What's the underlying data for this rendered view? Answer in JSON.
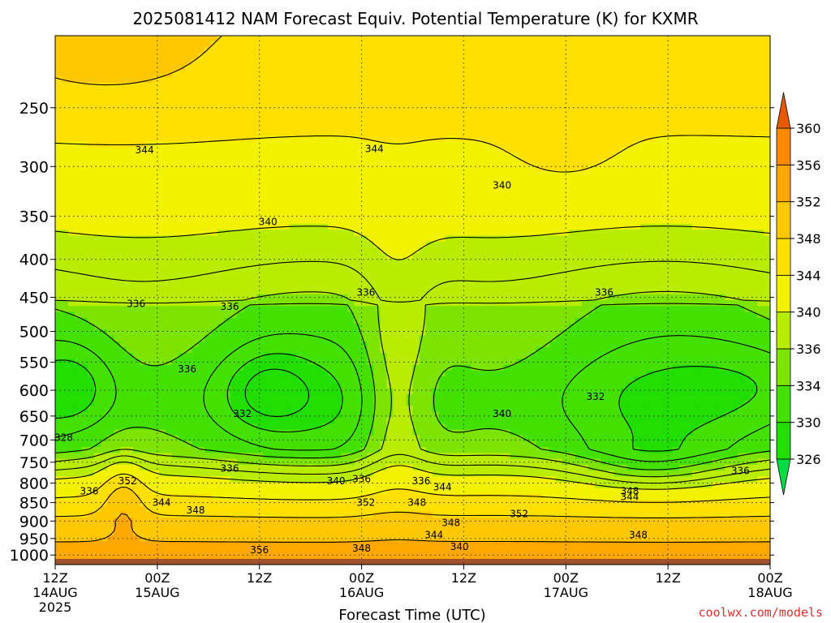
{
  "chart_data": {
    "type": "heatmap",
    "title": "2025081412 NAM Forecast Equiv. Potential Temperature (K) for KXMR",
    "xlabel": "Forecast Time (UTC)",
    "ylabel": "",
    "x_ticks": [
      {
        "label": "12Z",
        "sub": "14AUG",
        "sub2": "2025",
        "hours": 0
      },
      {
        "label": "00Z",
        "sub": "15AUG",
        "sub2": "",
        "hours": 12
      },
      {
        "label": "12Z",
        "sub": "",
        "sub2": "",
        "hours": 24
      },
      {
        "label": "00Z",
        "sub": "16AUG",
        "sub2": "",
        "hours": 36
      },
      {
        "label": "12Z",
        "sub": "",
        "sub2": "",
        "hours": 48
      },
      {
        "label": "00Z",
        "sub": "17AUG",
        "sub2": "",
        "hours": 60
      },
      {
        "label": "12Z",
        "sub": "",
        "sub2": "",
        "hours": 72
      },
      {
        "label": "00Z",
        "sub": "18AUG",
        "sub2": "",
        "hours": 84
      }
    ],
    "x_range_hours": [
      0,
      84
    ],
    "y_ticks": [
      250,
      300,
      350,
      400,
      450,
      500,
      550,
      600,
      650,
      700,
      750,
      800,
      850,
      900,
      950,
      1000
    ],
    "y_range_hPa": [
      200,
      1030
    ],
    "y_scale": "log",
    "grid": "dotted",
    "colorbar": {
      "levels": [
        326,
        330,
        334,
        336,
        340,
        344,
        348,
        352,
        356,
        360
      ],
      "colors": [
        "#22dd00",
        "#44e000",
        "#7de400",
        "#b8ec00",
        "#f2f200",
        "#ffe000",
        "#ffc800",
        "#ffa800",
        "#ff8a00",
        "#ff6c00"
      ],
      "under_color": "#00dd44",
      "over_color": "#e85a00",
      "placement": "right"
    },
    "contour_labels": [
      {
        "text": "344",
        "h": 10.5,
        "p": 285
      },
      {
        "text": "344",
        "h": 37.5,
        "p": 284
      },
      {
        "text": "340",
        "h": 52.5,
        "p": 318
      },
      {
        "text": "340",
        "h": 25,
        "p": 356
      },
      {
        "text": "336",
        "h": 9.5,
        "p": 459
      },
      {
        "text": "336",
        "h": 20.5,
        "p": 463
      },
      {
        "text": "336",
        "h": 36.5,
        "p": 443
      },
      {
        "text": "336",
        "h": 64.5,
        "p": 443
      },
      {
        "text": "336",
        "h": 15.5,
        "p": 562
      },
      {
        "text": "332",
        "h": 22,
        "p": 645
      },
      {
        "text": "332",
        "h": 63.5,
        "p": 612
      },
      {
        "text": "340",
        "h": 52.5,
        "p": 645
      },
      {
        "text": "328",
        "h": 1,
        "p": 695
      },
      {
        "text": "336",
        "h": 20.5,
        "p": 765
      },
      {
        "text": "336",
        "h": 80.5,
        "p": 770
      },
      {
        "text": "336",
        "h": 4,
        "p": 820
      },
      {
        "text": "352",
        "h": 8.5,
        "p": 795
      },
      {
        "text": "340",
        "h": 33,
        "p": 795
      },
      {
        "text": "336",
        "h": 36,
        "p": 790
      },
      {
        "text": "336",
        "h": 43,
        "p": 795
      },
      {
        "text": "344",
        "h": 45.5,
        "p": 810
      },
      {
        "text": "344",
        "h": 12.5,
        "p": 850
      },
      {
        "text": "348",
        "h": 16.5,
        "p": 870
      },
      {
        "text": "352",
        "h": 36.5,
        "p": 850
      },
      {
        "text": "348",
        "h": 42.5,
        "p": 850
      },
      {
        "text": "348",
        "h": 67.5,
        "p": 820
      },
      {
        "text": "344",
        "h": 67.5,
        "p": 835
      },
      {
        "text": "352",
        "h": 54.5,
        "p": 880
      },
      {
        "text": "348",
        "h": 46.5,
        "p": 905
      },
      {
        "text": "344",
        "h": 44.5,
        "p": 940
      },
      {
        "text": "348",
        "h": 68.5,
        "p": 940
      },
      {
        "text": "340",
        "h": 47.5,
        "p": 975
      },
      {
        "text": "348",
        "h": 36,
        "p": 980
      },
      {
        "text": "356",
        "h": 24,
        "p": 985
      }
    ]
  },
  "credit": "coolwx.com/models"
}
